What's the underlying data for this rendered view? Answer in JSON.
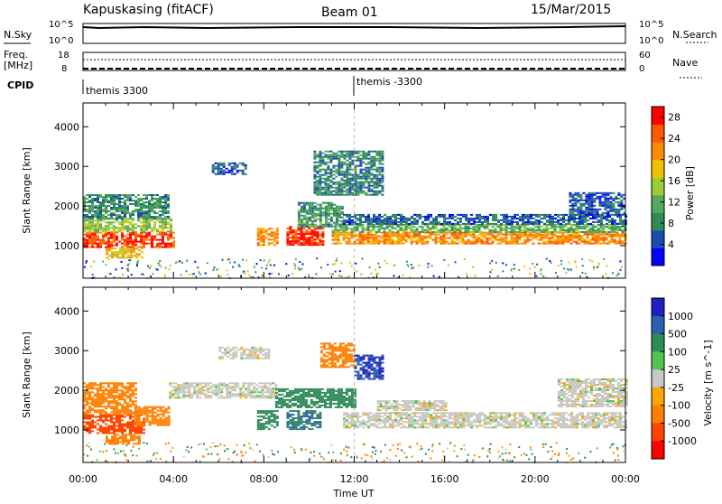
{
  "header": {
    "station": "Kapuskasing (fitACF)",
    "beam": "Beam 01",
    "date": "15/Mar/2015"
  },
  "top_panels": {
    "nsky_label": "N.Sky",
    "nsky_ticks": [
      "10^5",
      "10^0"
    ],
    "nsearch_label": "N.Search",
    "nsearch_ticks": [
      "10^5",
      "10^0"
    ],
    "freq_label": "Freq.",
    "freq_unit": "[MHz]",
    "freq_ticks": [
      "18",
      "8"
    ],
    "nave_label": "Nave",
    "nave_ticks": [
      "60",
      "0"
    ],
    "cpid_label": "CPID",
    "cpid_segments": [
      "themis 3300",
      "themis -3300"
    ],
    "cpid_switch_hour": 12
  },
  "colors": {
    "power_scale": [
      "#0000ff",
      "#1c4bb0",
      "#2e8b57",
      "#56a860",
      "#9acd32",
      "#f0c000",
      "#ff8c00",
      "#ff5a00",
      "#ff0000"
    ],
    "velocity_scale": [
      "#2020c0",
      "#2e5fb0",
      "#2e8b57",
      "#52c452",
      "#c8c8c8",
      "#ffa500",
      "#ff7f00",
      "#ff4500",
      "#ff0000"
    ],
    "grey_velocity": "#c8c8c0"
  },
  "chart_data": [
    {
      "type": "heatmap",
      "title": "",
      "xlabel": "Time UT",
      "ylabel": "Slant Range [km]",
      "xlim": [
        0,
        24
      ],
      "ylim": [
        180,
        4600
      ],
      "x_ticks": [
        "00:00",
        "04:00",
        "08:00",
        "12:00",
        "16:00",
        "20:00",
        "00:00"
      ],
      "y_ticks": [
        "1000",
        "2000",
        "3000",
        "4000"
      ],
      "colorbar_label": "Power [dB]",
      "colorbar_ticks": [
        "4",
        "8",
        "12",
        "16",
        "20",
        "24",
        "28"
      ],
      "colorbar_range": [
        0,
        30
      ],
      "regions": [
        {
          "t": [
            0.0,
            4.0
          ],
          "r": [
            950,
            1350
          ],
          "level": 26
        },
        {
          "t": [
            0.0,
            3.9
          ],
          "r": [
            1350,
            1700
          ],
          "level": 14
        },
        {
          "t": [
            0.0,
            3.8
          ],
          "r": [
            1700,
            2300
          ],
          "level": 9
        },
        {
          "t": [
            1.0,
            2.6
          ],
          "r": [
            700,
            950
          ],
          "level": 18
        },
        {
          "t": [
            5.7,
            7.2
          ],
          "r": [
            2800,
            3100
          ],
          "level": 6
        },
        {
          "t": [
            7.7,
            8.6
          ],
          "r": [
            1000,
            1450
          ],
          "level": 22
        },
        {
          "t": [
            9.0,
            10.6
          ],
          "r": [
            1000,
            1500
          ],
          "level": 27
        },
        {
          "t": [
            9.5,
            11.5
          ],
          "r": [
            1500,
            2100
          ],
          "level": 10
        },
        {
          "t": [
            10.2,
            13.3
          ],
          "r": [
            2300,
            3400
          ],
          "level": 8
        },
        {
          "t": [
            11.0,
            24.0
          ],
          "r": [
            1050,
            1350
          ],
          "level": 22
        },
        {
          "t": [
            11.0,
            24.0
          ],
          "r": [
            1350,
            1550
          ],
          "level": 12
        },
        {
          "t": [
            11.5,
            24.0
          ],
          "r": [
            1550,
            1800
          ],
          "level": 6
        },
        {
          "t": [
            21.5,
            24.0
          ],
          "r": [
            1800,
            2350
          ],
          "level": 5
        }
      ]
    },
    {
      "type": "heatmap",
      "title": "",
      "xlabel": "Time UT",
      "ylabel": "Slant Range [km]",
      "xlim": [
        0,
        24
      ],
      "ylim": [
        180,
        4600
      ],
      "x_ticks": [
        "00:00",
        "04:00",
        "08:00",
        "12:00",
        "16:00",
        "20:00",
        "00:00"
      ],
      "y_ticks": [
        "1000",
        "2000",
        "3000",
        "4000"
      ],
      "colorbar_label": "Velocity [m s^-1]",
      "colorbar_ticks": [
        "1000",
        "500",
        "100",
        "25",
        "-25",
        "-100",
        "-500",
        "-1000"
      ],
      "regions": [
        {
          "t": [
            0.0,
            2.7
          ],
          "r": [
            900,
            1400
          ],
          "v": -600
        },
        {
          "t": [
            0.0,
            2.3
          ],
          "r": [
            1400,
            2200
          ],
          "v": -300
        },
        {
          "t": [
            2.3,
            3.8
          ],
          "r": [
            1100,
            1600
          ],
          "v": -200
        },
        {
          "t": [
            1.0,
            2.5
          ],
          "r": [
            650,
            900
          ],
          "v": -400
        },
        {
          "t": [
            3.8,
            8.5
          ],
          "r": [
            1800,
            2200
          ],
          "v": 0
        },
        {
          "t": [
            6.0,
            8.2
          ],
          "r": [
            2800,
            3100
          ],
          "v": 0
        },
        {
          "t": [
            7.7,
            8.6
          ],
          "r": [
            1000,
            1500
          ],
          "v": 200
        },
        {
          "t": [
            9.0,
            10.5
          ],
          "r": [
            1000,
            1500
          ],
          "v": 300
        },
        {
          "t": [
            8.5,
            12.0
          ],
          "r": [
            1550,
            2050
          ],
          "v": 250
        },
        {
          "t": [
            10.5,
            12.0
          ],
          "r": [
            2600,
            3200
          ],
          "v": -400
        },
        {
          "t": [
            12.0,
            13.2
          ],
          "r": [
            2300,
            2900
          ],
          "v": 600
        },
        {
          "t": [
            11.5,
            24.0
          ],
          "r": [
            1050,
            1450
          ],
          "v": 0
        },
        {
          "t": [
            13.0,
            16.0
          ],
          "r": [
            1500,
            1750
          ],
          "v": 0
        },
        {
          "t": [
            21.0,
            24.0
          ],
          "r": [
            1600,
            2300
          ],
          "v": 0
        }
      ]
    }
  ]
}
